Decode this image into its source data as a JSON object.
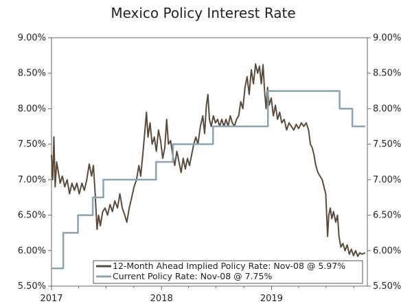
{
  "chart_data": {
    "type": "line",
    "title": "Mexico Policy Interest Rate",
    "xlabel": "",
    "ylabel": "",
    "x_ticks": [
      "2017",
      "2018",
      "2019"
    ],
    "y_ticks_left": [
      "9.00%",
      "8.50%",
      "8.00%",
      "7.50%",
      "7.00%",
      "6.50%",
      "6.00%",
      "5.50%"
    ],
    "y_ticks_right": [
      "9.00%",
      "8.50%",
      "8.00%",
      "7.50%",
      "7.00%",
      "6.50%",
      "6.00%",
      "5.50%"
    ],
    "xlim": [
      "2017-01-01",
      "2019-11-15"
    ],
    "ylim": [
      5.5,
      9.0
    ],
    "grid": false,
    "legend_position": "bottom-right",
    "series": [
      {
        "name": "12-Month Ahead Implied Policy Rate: Nov-08 @ 5.97%",
        "color": "#5a4a3c",
        "style": "line",
        "points": [
          [
            "2017-01-01",
            7.35
          ],
          [
            "2017-01-05",
            7.0
          ],
          [
            "2017-01-09",
            7.6
          ],
          [
            "2017-01-13",
            6.9
          ],
          [
            "2017-01-18",
            7.25
          ],
          [
            "2017-01-24",
            7.1
          ],
          [
            "2017-01-30",
            6.95
          ],
          [
            "2017-02-06",
            7.05
          ],
          [
            "2017-02-14",
            6.9
          ],
          [
            "2017-02-22",
            7.0
          ],
          [
            "2017-03-02",
            6.8
          ],
          [
            "2017-03-10",
            6.95
          ],
          [
            "2017-03-18",
            6.85
          ],
          [
            "2017-03-26",
            6.95
          ],
          [
            "2017-04-03",
            6.8
          ],
          [
            "2017-04-12",
            6.95
          ],
          [
            "2017-04-20",
            6.85
          ],
          [
            "2017-04-28",
            7.0
          ],
          [
            "2017-05-06",
            7.22
          ],
          [
            "2017-05-14",
            7.05
          ],
          [
            "2017-05-20",
            7.2
          ],
          [
            "2017-05-26",
            6.8
          ],
          [
            "2017-06-01",
            6.3
          ],
          [
            "2017-06-06",
            6.5
          ],
          [
            "2017-06-12",
            6.35
          ],
          [
            "2017-06-20",
            6.55
          ],
          [
            "2017-06-28",
            6.6
          ],
          [
            "2017-07-06",
            6.5
          ],
          [
            "2017-07-14",
            6.65
          ],
          [
            "2017-07-22",
            6.55
          ],
          [
            "2017-07-30",
            6.7
          ],
          [
            "2017-08-08",
            6.6
          ],
          [
            "2017-08-16",
            6.8
          ],
          [
            "2017-08-24",
            6.6
          ],
          [
            "2017-09-01",
            6.5
          ],
          [
            "2017-09-08",
            6.4
          ],
          [
            "2017-09-16",
            6.6
          ],
          [
            "2017-09-24",
            6.75
          ],
          [
            "2017-10-02",
            6.9
          ],
          [
            "2017-10-10",
            7.0
          ],
          [
            "2017-10-18",
            7.2
          ],
          [
            "2017-10-24",
            7.05
          ],
          [
            "2017-11-01",
            7.4
          ],
          [
            "2017-11-07",
            7.7
          ],
          [
            "2017-11-12",
            7.95
          ],
          [
            "2017-11-17",
            7.6
          ],
          [
            "2017-11-24",
            7.8
          ],
          [
            "2017-12-01",
            7.5
          ],
          [
            "2017-12-08",
            7.6
          ],
          [
            "2017-12-15",
            7.4
          ],
          [
            "2017-12-22",
            7.7
          ],
          [
            "2017-12-29",
            7.55
          ],
          [
            "2018-01-05",
            7.3
          ],
          [
            "2018-01-12",
            7.45
          ],
          [
            "2018-01-18",
            7.85
          ],
          [
            "2018-01-24",
            7.5
          ],
          [
            "2018-01-31",
            7.55
          ],
          [
            "2018-02-07",
            7.35
          ],
          [
            "2018-02-14",
            7.2
          ],
          [
            "2018-02-21",
            7.4
          ],
          [
            "2018-02-28",
            7.25
          ],
          [
            "2018-03-07",
            7.1
          ],
          [
            "2018-03-14",
            7.3
          ],
          [
            "2018-03-21",
            7.15
          ],
          [
            "2018-03-28",
            7.3
          ],
          [
            "2018-04-04",
            7.2
          ],
          [
            "2018-04-11",
            7.35
          ],
          [
            "2018-04-18",
            7.5
          ],
          [
            "2018-04-25",
            7.6
          ],
          [
            "2018-05-02",
            7.5
          ],
          [
            "2018-05-10",
            7.75
          ],
          [
            "2018-05-18",
            7.9
          ],
          [
            "2018-05-24",
            7.65
          ],
          [
            "2018-05-30",
            8.05
          ],
          [
            "2018-06-04",
            8.2
          ],
          [
            "2018-06-09",
            7.85
          ],
          [
            "2018-06-15",
            7.75
          ],
          [
            "2018-06-22",
            7.9
          ],
          [
            "2018-06-29",
            7.8
          ],
          [
            "2018-07-06",
            7.85
          ],
          [
            "2018-07-13",
            7.75
          ],
          [
            "2018-07-20",
            7.85
          ],
          [
            "2018-07-27",
            7.75
          ],
          [
            "2018-08-03",
            7.85
          ],
          [
            "2018-08-10",
            7.75
          ],
          [
            "2018-08-17",
            7.9
          ],
          [
            "2018-08-24",
            7.8
          ],
          [
            "2018-08-31",
            7.75
          ],
          [
            "2018-09-07",
            7.85
          ],
          [
            "2018-09-14",
            7.9
          ],
          [
            "2018-09-21",
            8.1
          ],
          [
            "2018-09-28",
            8.0
          ],
          [
            "2018-10-05",
            8.3
          ],
          [
            "2018-10-12",
            8.45
          ],
          [
            "2018-10-19",
            8.2
          ],
          [
            "2018-10-26",
            8.55
          ],
          [
            "2018-11-02",
            8.35
          ],
          [
            "2018-11-09",
            8.63
          ],
          [
            "2018-11-16",
            8.5
          ],
          [
            "2018-11-22",
            8.6
          ],
          [
            "2018-11-28",
            8.35
          ],
          [
            "2018-12-04",
            8.62
          ],
          [
            "2018-12-09",
            8.25
          ],
          [
            "2018-12-14",
            8.0
          ],
          [
            "2018-12-19",
            8.3
          ],
          [
            "2018-12-24",
            8.05
          ],
          [
            "2018-12-31",
            8.15
          ],
          [
            "2019-01-07",
            7.9
          ],
          [
            "2019-01-14",
            8.05
          ],
          [
            "2019-01-21",
            7.85
          ],
          [
            "2019-01-28",
            7.95
          ],
          [
            "2019-02-04",
            7.8
          ],
          [
            "2019-02-12",
            7.85
          ],
          [
            "2019-02-20",
            7.7
          ],
          [
            "2019-02-28",
            7.8
          ],
          [
            "2019-03-08",
            7.75
          ],
          [
            "2019-03-16",
            7.7
          ],
          [
            "2019-03-24",
            7.78
          ],
          [
            "2019-04-01",
            7.72
          ],
          [
            "2019-04-10",
            7.8
          ],
          [
            "2019-04-18",
            7.75
          ],
          [
            "2019-04-26",
            7.8
          ],
          [
            "2019-05-04",
            7.7
          ],
          [
            "2019-05-10",
            7.5
          ],
          [
            "2019-05-16",
            7.45
          ],
          [
            "2019-05-22",
            7.35
          ],
          [
            "2019-05-28",
            7.2
          ],
          [
            "2019-06-04",
            7.1
          ],
          [
            "2019-06-11",
            7.05
          ],
          [
            "2019-06-18",
            7.0
          ],
          [
            "2019-06-24",
            6.9
          ],
          [
            "2019-06-30",
            6.8
          ],
          [
            "2019-07-06",
            6.2
          ],
          [
            "2019-07-10",
            6.5
          ],
          [
            "2019-07-15",
            6.6
          ],
          [
            "2019-07-20",
            6.45
          ],
          [
            "2019-07-26",
            6.55
          ],
          [
            "2019-08-02",
            6.4
          ],
          [
            "2019-08-08",
            6.5
          ],
          [
            "2019-08-13",
            6.2
          ],
          [
            "2019-08-19",
            6.05
          ],
          [
            "2019-08-26",
            6.1
          ],
          [
            "2019-09-02",
            6.0
          ],
          [
            "2019-09-09",
            6.08
          ],
          [
            "2019-09-16",
            5.95
          ],
          [
            "2019-09-23",
            6.02
          ],
          [
            "2019-09-30",
            5.93
          ],
          [
            "2019-10-07",
            6.0
          ],
          [
            "2019-10-14",
            5.92
          ],
          [
            "2019-10-21",
            5.97
          ],
          [
            "2019-10-28",
            5.95
          ],
          [
            "2019-11-08",
            5.97
          ]
        ]
      },
      {
        "name": "Current Policy Rate: Nov-08 @ 7.75%",
        "color": "#8aa3b3",
        "style": "step",
        "points": [
          [
            "2017-01-01",
            5.75
          ],
          [
            "2017-02-09",
            6.25
          ],
          [
            "2017-03-30",
            6.5
          ],
          [
            "2017-05-18",
            6.75
          ],
          [
            "2017-06-22",
            7.0
          ],
          [
            "2017-12-14",
            7.25
          ],
          [
            "2018-02-08",
            7.5
          ],
          [
            "2018-06-21",
            7.75
          ],
          [
            "2018-12-20",
            8.25
          ],
          [
            "2019-08-15",
            8.0
          ],
          [
            "2019-09-26",
            7.75
          ],
          [
            "2019-11-08",
            7.75
          ]
        ]
      }
    ]
  }
}
